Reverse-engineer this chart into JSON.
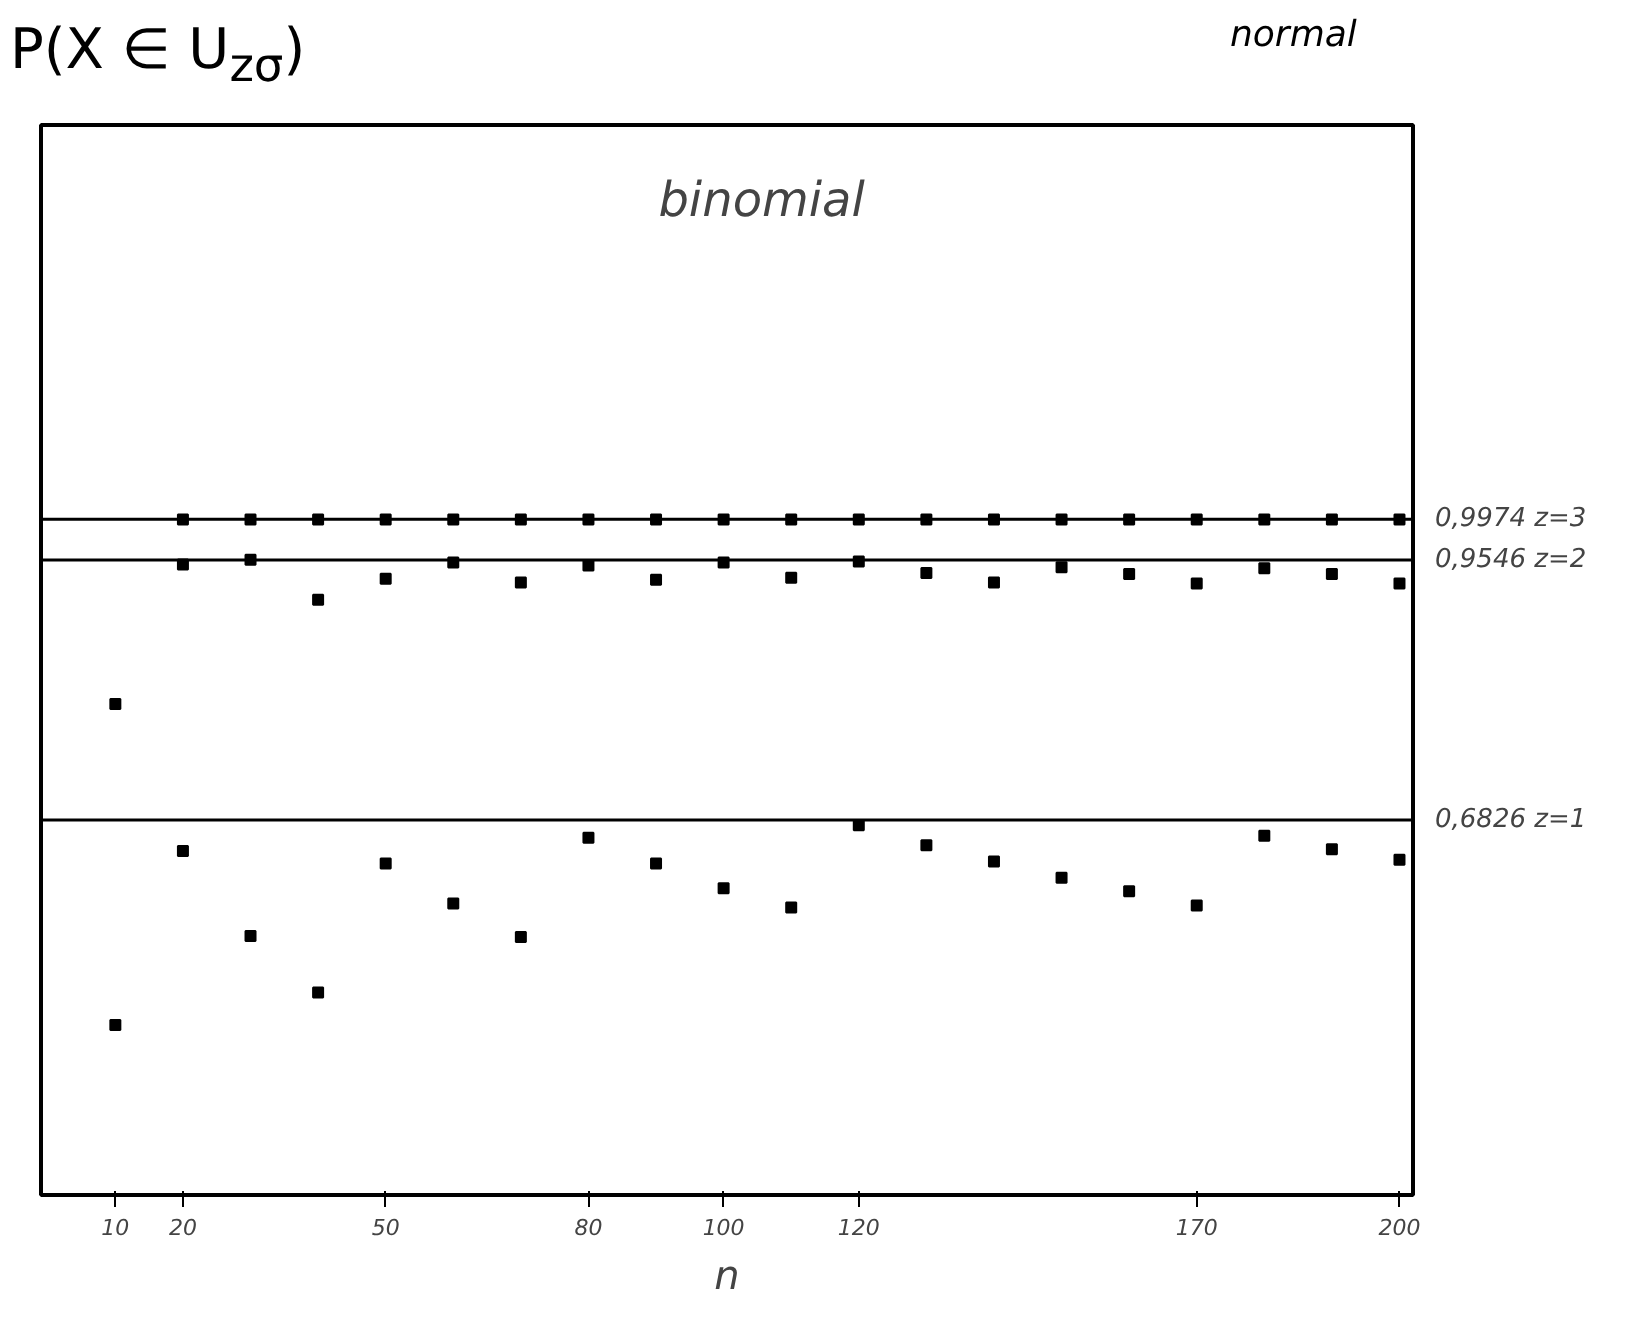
{
  "chart_data": {
    "type": "scatter",
    "ylabel": "P(X ∈ U$_{zσ}$)",
    "xlabel": "n",
    "annotations": [
      "binomial",
      "normal"
    ],
    "x": [
      10,
      20,
      30,
      40,
      50,
      60,
      70,
      80,
      90,
      100,
      110,
      120,
      130,
      140,
      150,
      160,
      170,
      180,
      190,
      200
    ],
    "series": [
      {
        "color": "#000000",
        "values": [
          null,
          0.997,
          0.997,
          0.997,
          0.997,
          0.997,
          0.997,
          0.997,
          0.997,
          0.997,
          0.997,
          0.997,
          0.997,
          0.997,
          0.997,
          0.997,
          0.997,
          0.997,
          0.997,
          0.997
        ]
      },
      {
        "color": "#000000",
        "values": [
          0.804,
          0.95,
          0.955,
          0.913,
          0.935,
          0.952,
          0.931,
          0.949,
          0.934,
          0.952,
          0.936,
          0.953,
          0.941,
          0.931,
          0.947,
          0.94,
          0.93,
          0.946,
          0.94,
          0.93
        ]
      },
      {
        "color": "#000000",
        "values": [
          0.468,
          0.65,
          0.561,
          0.502,
          0.637,
          0.595,
          0.56,
          0.664,
          0.637,
          0.611,
          0.591,
          0.677,
          0.656,
          0.639,
          0.622,
          0.608,
          0.593,
          0.666,
          0.652,
          0.641
        ]
      }
    ],
    "xlim": [
      -1,
      202
    ],
    "ylim": [
      0.29,
      1.41
    ],
    "xticks": [
      10,
      20,
      50,
      80,
      100,
      120,
      170,
      200
    ],
    "ref_lines": [
      {
        "axis": "y",
        "value": 0.9974,
        "label": "0,9974  z=3",
        "color": "#000000",
        "line_style": "solid"
      },
      {
        "axis": "y",
        "value": 0.9546,
        "label": "0,9546  z=2",
        "color": "#000000",
        "line_style": "solid"
      },
      {
        "axis": "y",
        "value": 0.6826,
        "label": "0,6826  z=1",
        "color": "#000000",
        "line_style": "solid"
      }
    ],
    "marker": "square",
    "grid": false
  }
}
